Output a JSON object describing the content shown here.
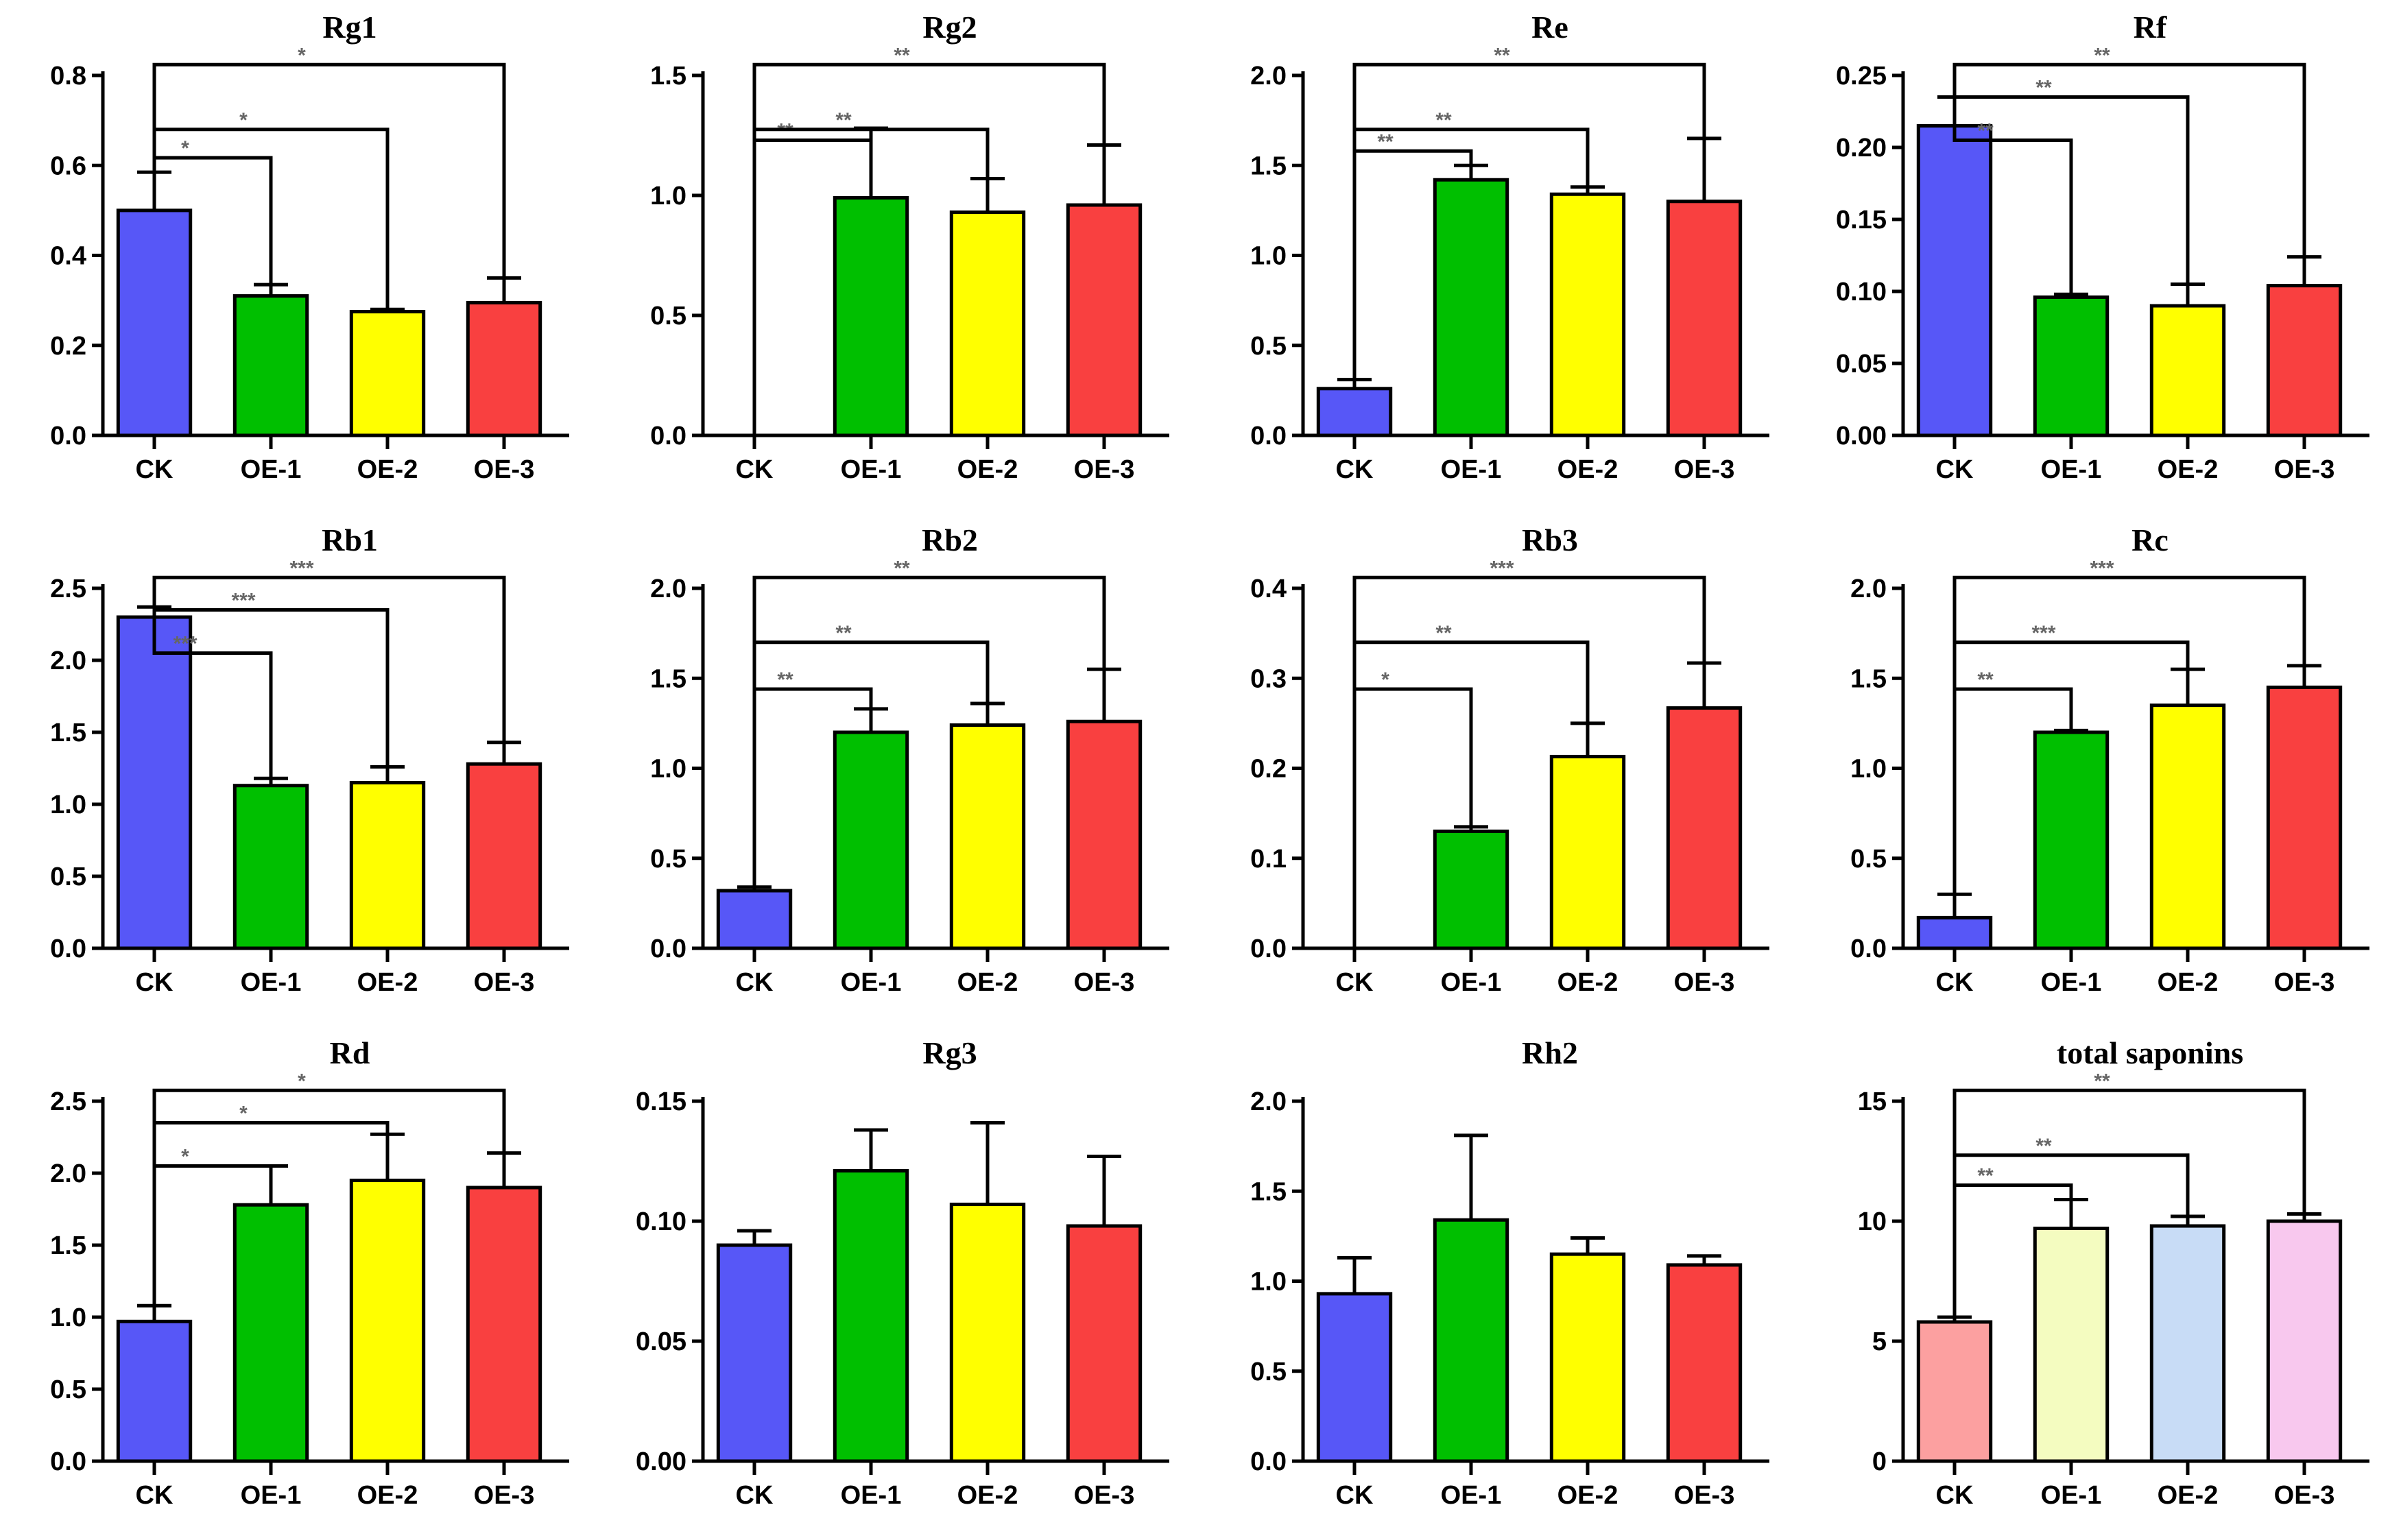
{
  "chart_data": [
    {
      "type": "bar",
      "title": "Rg1",
      "categories": [
        "CK",
        "OE-1",
        "OE-2",
        "OE-3"
      ],
      "values": [
        0.5,
        0.31,
        0.275,
        0.295
      ],
      "errors": [
        0.085,
        0.025,
        0.005,
        0.055
      ],
      "ylim": [
        0,
        0.8
      ],
      "ystep": 0.2,
      "decimals": 1,
      "significance": [
        "*",
        "*",
        "*"
      ],
      "colors": [
        "#5757F7",
        "#00BF00",
        "#FFFF00",
        "#F94040"
      ]
    },
    {
      "type": "bar",
      "title": "Rg2",
      "categories": [
        "CK",
        "OE-1",
        "OE-2",
        "OE-3"
      ],
      "values": [
        0,
        0.99,
        0.93,
        0.96
      ],
      "errors": [
        0,
        0.29,
        0.14,
        0.25
      ],
      "ylim": [
        0,
        1.5
      ],
      "ystep": 0.5,
      "decimals": 1,
      "significance": [
        "**",
        "**",
        "**"
      ],
      "colors": [
        "#5757F7",
        "#00BF00",
        "#FFFF00",
        "#F94040"
      ]
    },
    {
      "type": "bar",
      "title": "Re",
      "categories": [
        "CK",
        "OE-1",
        "OE-2",
        "OE-3"
      ],
      "values": [
        0.26,
        1.42,
        1.34,
        1.3
      ],
      "errors": [
        0.05,
        0.08,
        0.04,
        0.35
      ],
      "ylim": [
        0,
        2.0
      ],
      "ystep": 0.5,
      "decimals": 1,
      "significance": [
        "**",
        "**",
        "**"
      ],
      "colors": [
        "#5757F7",
        "#00BF00",
        "#FFFF00",
        "#F94040"
      ]
    },
    {
      "type": "bar",
      "title": "Rf",
      "categories": [
        "CK",
        "OE-1",
        "OE-2",
        "OE-3"
      ],
      "values": [
        0.215,
        0.096,
        0.09,
        0.104
      ],
      "errors": [
        0.02,
        0.002,
        0.015,
        0.02
      ],
      "ylim": [
        0,
        0.25
      ],
      "ystep": 0.05,
      "decimals": 2,
      "significance": [
        "**",
        "**",
        "**"
      ],
      "colors": [
        "#5757F7",
        "#00BF00",
        "#FFFF00",
        "#F94040"
      ]
    },
    {
      "type": "bar",
      "title": "Rb1",
      "categories": [
        "CK",
        "OE-1",
        "OE-2",
        "OE-3"
      ],
      "values": [
        2.3,
        1.13,
        1.15,
        1.28
      ],
      "errors": [
        0.07,
        0.05,
        0.11,
        0.15
      ],
      "ylim": [
        0,
        2.5
      ],
      "ystep": 0.5,
      "decimals": 1,
      "significance": [
        "***",
        "***",
        "***"
      ],
      "colors": [
        "#5757F7",
        "#00BF00",
        "#FFFF00",
        "#F94040"
      ]
    },
    {
      "type": "bar",
      "title": "Rb2",
      "categories": [
        "CK",
        "OE-1",
        "OE-2",
        "OE-3"
      ],
      "values": [
        0.32,
        1.2,
        1.24,
        1.26
      ],
      "errors": [
        0.02,
        0.13,
        0.12,
        0.29
      ],
      "ylim": [
        0,
        2.0
      ],
      "ystep": 0.5,
      "decimals": 1,
      "significance": [
        "**",
        "**",
        "**"
      ],
      "colors": [
        "#5757F7",
        "#00BF00",
        "#FFFF00",
        "#F94040"
      ]
    },
    {
      "type": "bar",
      "title": "Rb3",
      "categories": [
        "CK",
        "OE-1",
        "OE-2",
        "OE-3"
      ],
      "values": [
        0,
        0.13,
        0.213,
        0.267
      ],
      "errors": [
        0,
        0.005,
        0.037,
        0.05
      ],
      "ylim": [
        0,
        0.4
      ],
      "ystep": 0.1,
      "decimals": 1,
      "significance": [
        "*",
        "**",
        "***"
      ],
      "colors": [
        "#5757F7",
        "#00BF00",
        "#FFFF00",
        "#F94040"
      ]
    },
    {
      "type": "bar",
      "title": "Rc",
      "categories": [
        "CK",
        "OE-1",
        "OE-2",
        "OE-3"
      ],
      "values": [
        0.17,
        1.2,
        1.35,
        1.45
      ],
      "errors": [
        0.13,
        0.01,
        0.2,
        0.12
      ],
      "ylim": [
        0,
        2.0
      ],
      "ystep": 0.5,
      "decimals": 1,
      "significance": [
        "**",
        "***",
        "***"
      ],
      "colors": [
        "#5757F7",
        "#00BF00",
        "#FFFF00",
        "#F94040"
      ]
    },
    {
      "type": "bar",
      "title": "Rd",
      "categories": [
        "CK",
        "OE-1",
        "OE-2",
        "OE-3"
      ],
      "values": [
        0.97,
        1.78,
        1.95,
        1.9
      ],
      "errors": [
        0.11,
        0.27,
        0.32,
        0.24
      ],
      "ylim": [
        0,
        2.5
      ],
      "ystep": 0.5,
      "decimals": 1,
      "significance": [
        "*",
        "*",
        "*"
      ],
      "colors": [
        "#5757F7",
        "#00BF00",
        "#FFFF00",
        "#F94040"
      ]
    },
    {
      "type": "bar",
      "title": "Rg3",
      "categories": [
        "CK",
        "OE-1",
        "OE-2",
        "OE-3"
      ],
      "values": [
        0.09,
        0.121,
        0.107,
        0.098
      ],
      "errors": [
        0.006,
        0.017,
        0.034,
        0.029
      ],
      "ylim": [
        0,
        0.15
      ],
      "ystep": 0.05,
      "decimals": 2,
      "significance": [],
      "colors": [
        "#5757F7",
        "#00BF00",
        "#FFFF00",
        "#F94040"
      ]
    },
    {
      "type": "bar",
      "title": "Rh2",
      "categories": [
        "CK",
        "OE-1",
        "OE-2",
        "OE-3"
      ],
      "values": [
        0.93,
        1.34,
        1.15,
        1.09
      ],
      "errors": [
        0.2,
        0.47,
        0.09,
        0.05
      ],
      "ylim": [
        0,
        2.0
      ],
      "ystep": 0.5,
      "decimals": 1,
      "significance": [],
      "colors": [
        "#5757F7",
        "#00BF00",
        "#FFFF00",
        "#F94040"
      ]
    },
    {
      "type": "bar",
      "title": "total saponins",
      "categories": [
        "CK",
        "OE-1",
        "OE-2",
        "OE-3"
      ],
      "values": [
        5.8,
        9.7,
        9.8,
        10.0
      ],
      "errors": [
        0.2,
        1.2,
        0.4,
        0.3
      ],
      "ylim": [
        0,
        15
      ],
      "ystep": 5,
      "decimals": 0,
      "significance": [
        "**",
        "**",
        "**"
      ],
      "colors": [
        "#FCA0A0",
        "#F4FCC0",
        "#C8DCF6",
        "#F8C8EE"
      ]
    }
  ]
}
